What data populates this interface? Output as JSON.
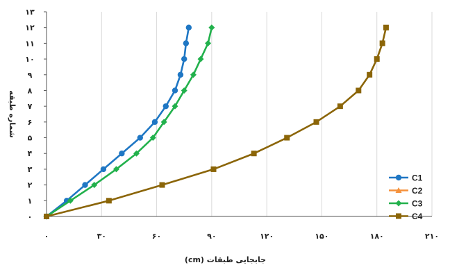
{
  "chart_data": {
    "type": "line",
    "xlabel": "جابجایی طبقات (cm)",
    "ylabel": "شماره طبقه",
    "xlim": [
      0,
      210
    ],
    "ylim": [
      0,
      13
    ],
    "x_ticks": [
      0,
      30,
      60,
      90,
      120,
      150,
      180,
      210
    ],
    "y_ticks": [
      0,
      1,
      2,
      3,
      4,
      5,
      6,
      7,
      8,
      9,
      10,
      11,
      12,
      13
    ],
    "x_tick_labels": [
      "۰",
      "۳۰",
      "۶۰",
      "۹۰",
      "۱۲۰",
      "۱۵۰",
      "۱۸۰",
      "۲۱۰"
    ],
    "y_tick_labels": [
      "۰",
      "۱",
      "۲",
      "۳",
      "۴",
      "۵",
      "۶",
      "۷",
      "۸",
      "۹",
      "۱۰",
      "۱۱",
      "۱۲",
      "۱۳"
    ],
    "grid": "vertical",
    "legend_position": "bottom-right",
    "series": [
      {
        "name": "C1",
        "color": "#1f77c4",
        "marker": "circle",
        "x": [
          0,
          11,
          21,
          31,
          41,
          51,
          59,
          65,
          70,
          73,
          75,
          76,
          77.5
        ],
        "y": [
          0,
          1,
          2,
          3,
          4,
          5,
          6,
          7,
          8,
          9,
          10,
          11,
          12
        ]
      },
      {
        "name": "C2",
        "color": "#f5913b",
        "marker": "triangle",
        "x": [
          0
        ],
        "y": [
          0
        ]
      },
      {
        "name": "C3",
        "color": "#22b14c",
        "marker": "diamond",
        "x": [
          0,
          13,
          26,
          38,
          49,
          58,
          64,
          70,
          75,
          80,
          84,
          88,
          90
        ],
        "y": [
          0,
          1,
          2,
          3,
          4,
          5,
          6,
          7,
          8,
          9,
          10,
          11,
          12
        ]
      },
      {
        "name": "C4",
        "color": "#8b6508",
        "marker": "square",
        "x": [
          0,
          34,
          63,
          91,
          113,
          131,
          147,
          160,
          170,
          176,
          180,
          183,
          185
        ],
        "y": [
          0,
          1,
          2,
          3,
          4,
          5,
          6,
          7,
          8,
          9,
          10,
          11,
          12
        ]
      }
    ]
  }
}
